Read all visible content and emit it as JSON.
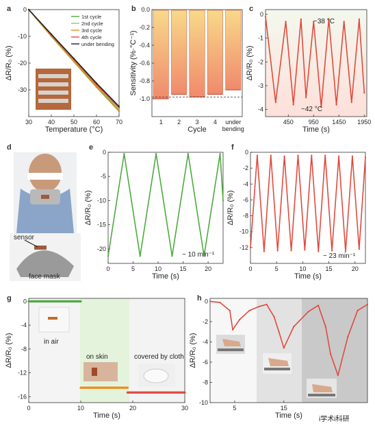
{
  "panels": {
    "a": {
      "label": "a"
    },
    "b": {
      "label": "b"
    },
    "c": {
      "label": "c"
    },
    "d": {
      "label": "d"
    },
    "e": {
      "label": "e"
    },
    "f": {
      "label": "f"
    },
    "g": {
      "label": "g"
    },
    "h": {
      "label": "h"
    }
  },
  "colors": {
    "red": "#e04a3c",
    "green": "#4caa3c",
    "orange": "#f08a1c",
    "black": "#222222",
    "barTop": "#f8d98a",
    "barBottom": "#f08a6c",
    "cBgTop": "#ffffff",
    "cBgBottom": "#fde7e2",
    "gGreen": "#e4f3dc",
    "gGray": "#ececec",
    "hGray1": "#e6e6e6",
    "hGray2": "#cfcfcf"
  },
  "photo_labels": {
    "d_sensor": "sensor",
    "d_mask": "face mask",
    "g_air": "in air",
    "g_skin": "on skin",
    "g_cloth": "covered by cloth",
    "watermark": "i学术i科研"
  },
  "chart_data": [
    {
      "id": "a",
      "type": "line",
      "xlabel": "Temperature (°C)",
      "ylabel": "ΔR/R₀ (%)",
      "xlim": [
        30,
        70
      ],
      "ylim": [
        -40,
        0
      ],
      "xticks": [
        30,
        40,
        50,
        60,
        70
      ],
      "yticks": [
        0,
        -10,
        -20,
        -30
      ],
      "legend_position": "top-right",
      "series": [
        {
          "name": "1st cycle",
          "color": "#4caa3c",
          "x": [
            30,
            40,
            50,
            60,
            70
          ],
          "y": [
            0,
            -10,
            -19.5,
            -29,
            -38
          ]
        },
        {
          "name": "2nd cycle",
          "color": "#7fcf6c",
          "x": [
            30,
            40,
            50,
            60,
            70
          ],
          "y": [
            0,
            -9.6,
            -19,
            -28.5,
            -37.5
          ]
        },
        {
          "name": "3rd cycle",
          "color": "#f08a1c",
          "x": [
            30,
            40,
            50,
            60,
            70
          ],
          "y": [
            0,
            -9.8,
            -19.3,
            -28.8,
            -37.8
          ]
        },
        {
          "name": "4th cycle",
          "color": "#e04a3c",
          "x": [
            30,
            40,
            50,
            60,
            70
          ],
          "y": [
            0,
            -9.4,
            -18.6,
            -28,
            -36.8
          ]
        },
        {
          "name": "under bending",
          "color": "#222222",
          "x": [
            30,
            40,
            50,
            60,
            70
          ],
          "y": [
            0,
            -9.2,
            -18.3,
            -27.5,
            -36.2
          ]
        }
      ]
    },
    {
      "id": "b",
      "type": "bar",
      "xlabel": "Cycle",
      "ylabel": "Sensitivity (%·°C⁻¹)",
      "categories": [
        "1",
        "2",
        "3",
        "4",
        "under bending"
      ],
      "values": [
        -1.0,
        -0.95,
        -0.98,
        -0.95,
        -0.9
      ],
      "ylim": [
        -1.2,
        0
      ],
      "yticks": [
        "0.0",
        "-0.2",
        "-0.4",
        "-0.6",
        "-0.8",
        "-1.0"
      ],
      "reference_line": -0.98
    },
    {
      "id": "c",
      "type": "line",
      "xlabel": "Time (s)",
      "ylabel": "ΔR/R₀ (%)",
      "xlim": [
        0,
        2000
      ],
      "ylim": [
        -4.3,
        0.2
      ],
      "xticks": [
        "450",
        "950",
        "1450",
        "1950"
      ],
      "yticks": [
        "0",
        "-1",
        "-2",
        "-3",
        "-4"
      ],
      "annotations": [
        "~38 °C",
        "~42 °C"
      ],
      "series": [
        {
          "color": "#e04a3c",
          "x": [
            0,
            200,
            400,
            550,
            700,
            800,
            950,
            1100,
            1250,
            1400,
            1550,
            1700,
            1850,
            1950
          ],
          "y": [
            -0.1,
            -3.7,
            -0.3,
            -3.8,
            -0.2,
            -3.5,
            -0.3,
            -3.9,
            -0.2,
            -3.8,
            -0.3,
            -3.7,
            -0.2,
            -3.3
          ]
        }
      ]
    },
    {
      "id": "e",
      "type": "line",
      "xlabel": "Time (s)",
      "ylabel": "ΔR/R₀ (%)",
      "xlim": [
        0,
        23
      ],
      "ylim": [
        -23,
        0
      ],
      "xticks": [
        "0",
        "5",
        "10",
        "15",
        "20"
      ],
      "yticks": [
        "0",
        "-5",
        "-10",
        "-15",
        "-20"
      ],
      "annotations": [
        "~ 10 min⁻¹"
      ],
      "series": [
        {
          "color": "#4caa3c",
          "x": [
            0,
            3.2,
            6.4,
            9.6,
            12.8,
            16,
            19.2,
            22.4,
            23
          ],
          "y": [
            -21.5,
            -0.3,
            -21.5,
            -0.3,
            -21.5,
            -0.3,
            -21.5,
            -0.3,
            -10
          ]
        }
      ]
    },
    {
      "id": "f",
      "type": "line",
      "xlabel": "Time (s)",
      "ylabel": "ΔR/R₀ (%)",
      "xlim": [
        0,
        22
      ],
      "ylim": [
        -14,
        0
      ],
      "xticks": [
        "0",
        "5",
        "10",
        "15",
        "20"
      ],
      "yticks": [
        "0",
        "-2",
        "-4",
        "-6",
        "-8",
        "-10",
        "-12"
      ],
      "annotations": [
        "~ 23 min⁻¹"
      ],
      "series": [
        {
          "color": "#e04a3c",
          "x": [
            0,
            1.3,
            2.6,
            3.9,
            5.2,
            6.5,
            7.8,
            9.1,
            10.4,
            11.7,
            13,
            14.3,
            15.6,
            16.9,
            18.2,
            19.5,
            20.8,
            22
          ],
          "y": [
            -12,
            -0.4,
            -12.5,
            -0.4,
            -12.4,
            -0.5,
            -12.4,
            -0.4,
            -12.3,
            -0.4,
            -12.5,
            -0.4,
            -12.4,
            -0.5,
            -12.5,
            -0.5,
            -12.2,
            -0.6
          ]
        }
      ]
    },
    {
      "id": "g",
      "type": "line",
      "xlabel": "Time (s)",
      "ylabel": "ΔR/R₀ (%)",
      "xlim": [
        0,
        30
      ],
      "ylim": [
        -17,
        0.5
      ],
      "xticks": [
        "0",
        "10",
        "20",
        "30"
      ],
      "yticks": [
        "0",
        "-4",
        "-8",
        "-12",
        "-16"
      ],
      "series": [
        {
          "name": "in air",
          "color": "#4caa3c",
          "x": [
            0,
            10
          ],
          "y": [
            0,
            0
          ]
        },
        {
          "name": "on skin",
          "color": "#f08a1c",
          "x": [
            10,
            19
          ],
          "y": [
            -14.5,
            -14.5
          ]
        },
        {
          "name": "covered by cloth",
          "color": "#e04a3c",
          "x": [
            19,
            30
          ],
          "y": [
            -15.3,
            -15.3
          ]
        }
      ]
    },
    {
      "id": "h",
      "type": "line",
      "xlabel": "Time (s)",
      "ylabel": "ΔR/R₀ (%)",
      "xlim": [
        0,
        32
      ],
      "ylim": [
        -10,
        0.3
      ],
      "xticks": [
        "5",
        "15"
      ],
      "yticks": [
        "0",
        "-2",
        "-4",
        "-6",
        "-8",
        "-10"
      ],
      "series": [
        {
          "color": "#e04a3c",
          "x": [
            0,
            2,
            4,
            4.6,
            6,
            8,
            10,
            11.5,
            13,
            14,
            15,
            17,
            20,
            22,
            23.5,
            24.5,
            26,
            28,
            30,
            32
          ],
          "y": [
            0,
            -0.1,
            -0.9,
            -2.8,
            -1.8,
            -0.9,
            -0.5,
            -0.3,
            -1.5,
            -3,
            -4.6,
            -2.5,
            -1,
            -0.4,
            -2.5,
            -5.2,
            -7.3,
            -3.5,
            -0.9,
            -0.3
          ]
        }
      ]
    }
  ]
}
